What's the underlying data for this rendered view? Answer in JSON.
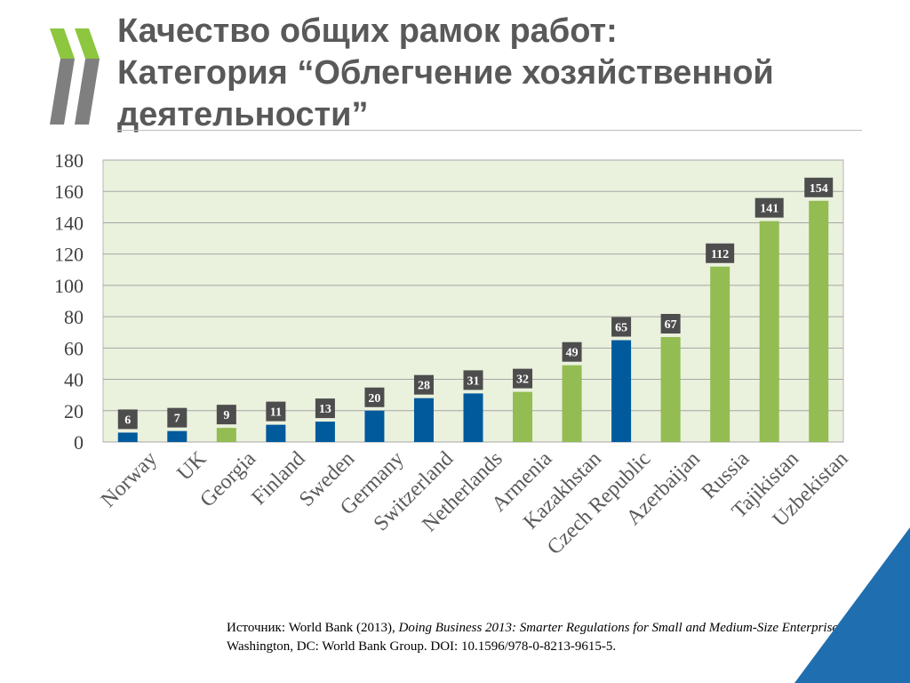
{
  "title": {
    "line1": "Качество общих рамок работ:",
    "line2": "Категория “Облегчение хозяйственной",
    "line3": "деятельности”"
  },
  "chart_data": {
    "type": "bar",
    "categories": [
      "Norway",
      "UK",
      "Georgia",
      "Finland",
      "Sweden",
      "Germany",
      "Switzerland",
      "Netherlands",
      "Armenia",
      "Kazakhstan",
      "Czech Republic",
      "Azerbaijan",
      "Russia",
      "Tajikistan",
      "Uzbekistan"
    ],
    "values": [
      6,
      7,
      9,
      11,
      13,
      20,
      28,
      31,
      32,
      49,
      65,
      67,
      112,
      141,
      154
    ],
    "bar_group": [
      "blue",
      "blue",
      "green",
      "blue",
      "blue",
      "blue",
      "blue",
      "blue",
      "green",
      "green",
      "blue",
      "green",
      "green",
      "green",
      "green"
    ],
    "ylim": [
      0,
      180
    ],
    "yticks": [
      0,
      20,
      40,
      60,
      80,
      100,
      120,
      140,
      160,
      180
    ],
    "grid": true,
    "legend": "none",
    "data_labels": true,
    "colors": {
      "blue": "#005a9c",
      "green": "#93bc52",
      "plot_bg": "#eaf1dd",
      "label_bg": "#4d4d4d"
    }
  },
  "source": {
    "prefix": "Источник: World Bank (2013), ",
    "italic": "Doing Business 2013: Smarter Regulations for Small and Medium-Size Enterprises",
    "suffix": ". Washington, DC: World Bank Group. DOI: 10.1596/978-0-8213-9615-5."
  },
  "colors": {
    "logo_green": "#8dc63f",
    "logo_gray": "#7f7f7f",
    "corner_blue": "#1f6fb0"
  }
}
